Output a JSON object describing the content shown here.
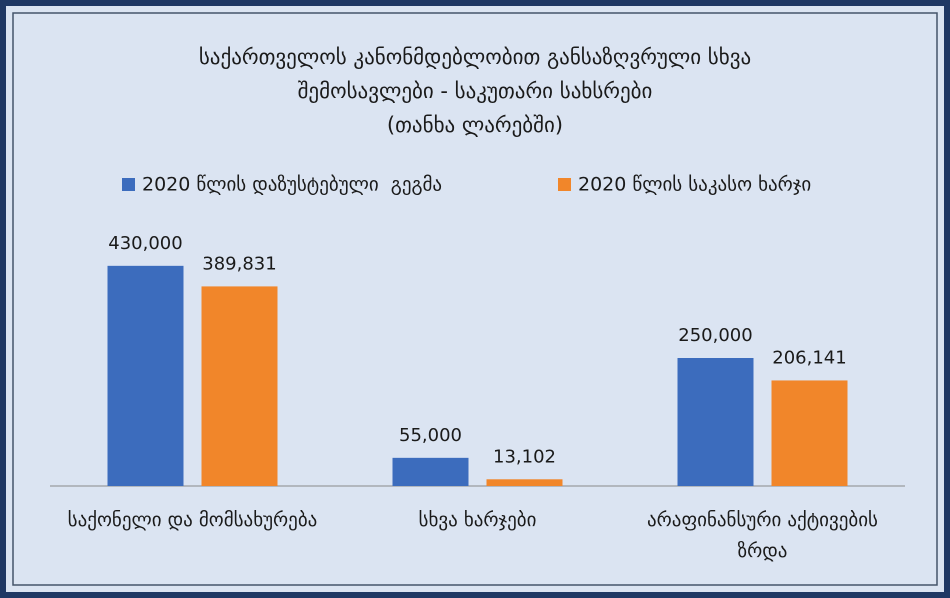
{
  "chart_data": {
    "type": "bar",
    "title": [
      "საქართველოს კანონმდებლობით განსაზღვრული სხვა",
      "შემოსავლები - საკუთარი სახსრები",
      "(თანხა ლარებში)"
    ],
    "categories": [
      "საქონელი და მომსახურება",
      "სხვა ხარჯები",
      "არაფინანსური აქტივების ზრდა"
    ],
    "series": [
      {
        "name": "2020 წლის დაზუსტებული  გეგმა",
        "color": "#3c6cbd",
        "values": [
          430000,
          55000,
          250000
        ],
        "value_labels": [
          "430,000",
          "55,000",
          "250,000"
        ]
      },
      {
        "name": "2020 წლის საკასო ხარჯი",
        "color": "#f1862a",
        "values": [
          389831,
          13102,
          206141
        ],
        "value_labels": [
          "389,831",
          "13,102",
          "206,141"
        ]
      }
    ],
    "ylim": [
      0,
      500000
    ]
  }
}
